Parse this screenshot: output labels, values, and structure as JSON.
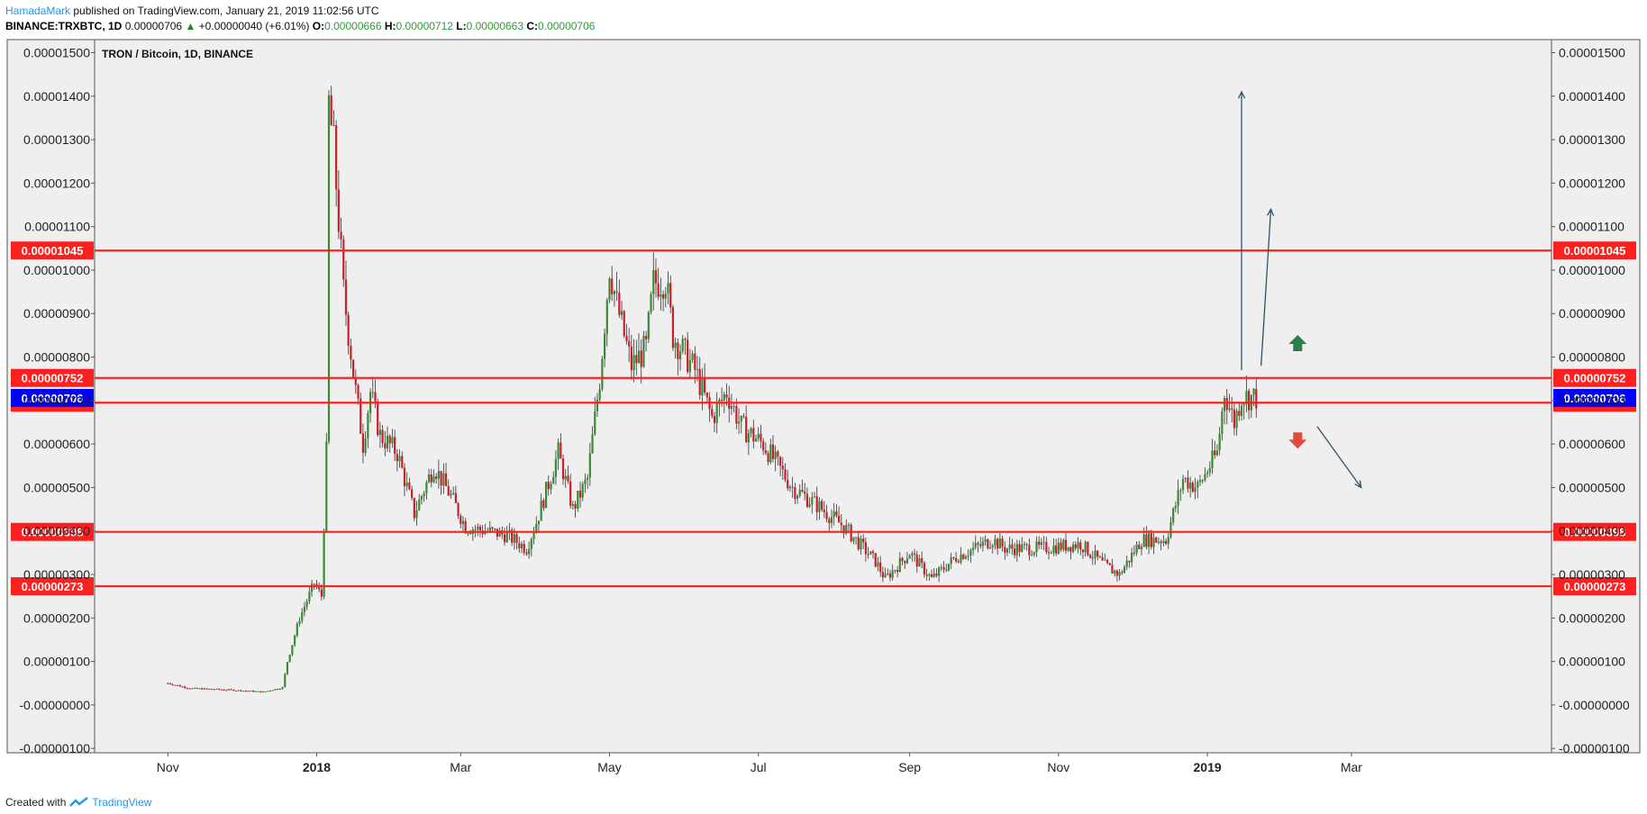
{
  "header": {
    "user": "HamadaMark",
    "published": "published on TradingView.com, January 21, 2019 11:02:56 UTC",
    "symbol": "BINANCE:TRXBTC, 1D",
    "last": "0.00000706",
    "change": "+0.00000040 (+6.01%)",
    "o_label": "O:",
    "o": "0.00000666",
    "h_label": "H:",
    "h": "0.00000712",
    "l_label": "L:",
    "l": "0.00000663",
    "c_label": "C:",
    "c": "0.00000706"
  },
  "footer": {
    "created": "Created with",
    "brand": "TradingView"
  },
  "colors": {
    "up": "#3a8a35",
    "down": "#c8202a",
    "level": "#ff1f1f",
    "current": "#0000ff",
    "plot_bg": "#efefef",
    "arrow": "#2d5566",
    "green_arrow": "#2e7d4f",
    "red_arrow": "#e04b3c"
  },
  "chart_data": {
    "type": "candlestick",
    "title": "TRON / Bitcoin, 1D, BINANCE",
    "ylim": [
      -1.1e-06,
      1.53e-05
    ],
    "y_ticks": [
      "0.00001500",
      "0.00001400",
      "0.00001300",
      "0.00001200",
      "0.00001100",
      "0.00001000",
      "0.00000900",
      "0.00000800",
      "0.00000700",
      "0.00000600",
      "0.00000500",
      "0.00000400",
      "0.00000300",
      "0.00000200",
      "0.00000100",
      "-0.00000000",
      "-0.00000100"
    ],
    "y_tick_values": [
      1.5e-05,
      1.4e-05,
      1.3e-05,
      1.2e-05,
      1.1e-05,
      1e-05,
      9e-06,
      8e-06,
      7e-06,
      6e-06,
      5e-06,
      4e-06,
      3e-06,
      2e-06,
      1e-06,
      0,
      -1e-06
    ],
    "x_labels": [
      {
        "label": "Nov",
        "date": "2017-11-01",
        "bold": false
      },
      {
        "label": "2018",
        "date": "2018-01-01",
        "bold": true
      },
      {
        "label": "Mar",
        "date": "2018-03-01",
        "bold": false
      },
      {
        "label": "May",
        "date": "2018-05-01",
        "bold": false
      },
      {
        "label": "Jul",
        "date": "2018-07-01",
        "bold": false
      },
      {
        "label": "Sep",
        "date": "2018-09-01",
        "bold": false
      },
      {
        "label": "Nov",
        "date": "2018-11-01",
        "bold": false
      },
      {
        "label": "2019",
        "date": "2019-01-01",
        "bold": true
      },
      {
        "label": "Mar",
        "date": "2019-03-01",
        "bold": false
      }
    ],
    "x_range": [
      "2017-10-02",
      "2019-05-22"
    ],
    "levels": [
      {
        "value": 1.045e-05,
        "label": "0.00001045"
      },
      {
        "value": 7.52e-06,
        "label": "0.00000752"
      },
      {
        "value": 6.95e-06,
        "label": "0.00000695"
      },
      {
        "value": 3.98e-06,
        "label": "0.00000398"
      },
      {
        "value": 2.73e-06,
        "label": "0.00000273"
      }
    ],
    "current": {
      "value": 7.06e-06,
      "label": "0.00000706"
    },
    "price_path": [
      [
        "2017-11-01",
        5e-07
      ],
      [
        "2017-11-10",
        3.8e-07
      ],
      [
        "2017-11-25",
        3.5e-07
      ],
      [
        "2017-12-10",
        3e-07
      ],
      [
        "2017-12-18",
        4e-07
      ],
      [
        "2017-12-20",
        1e-06
      ],
      [
        "2017-12-25",
        2e-06
      ],
      [
        "2017-12-31",
        2.8e-06
      ],
      [
        "2018-01-03",
        2.5e-06
      ],
      [
        "2018-01-05",
        5.8e-06
      ],
      [
        "2018-01-06",
        1.38e-05
      ],
      [
        "2018-01-08",
        1.28e-05
      ],
      [
        "2018-01-12",
        9.5e-06
      ],
      [
        "2018-01-17",
        7.2e-06
      ],
      [
        "2018-01-20",
        6e-06
      ],
      [
        "2018-01-23",
        7.2e-06
      ],
      [
        "2018-01-27",
        6.2e-06
      ],
      [
        "2018-02-03",
        5.8e-06
      ],
      [
        "2018-02-10",
        4.4e-06
      ],
      [
        "2018-02-18",
        5.5e-06
      ],
      [
        "2018-02-25",
        4.8e-06
      ],
      [
        "2018-03-03",
        4.1e-06
      ],
      [
        "2018-03-20",
        3.9e-06
      ],
      [
        "2018-03-28",
        3.6e-06
      ],
      [
        "2018-04-01",
        4.2e-06
      ],
      [
        "2018-04-10",
        5.8e-06
      ],
      [
        "2018-04-16",
        4.5e-06
      ],
      [
        "2018-04-22",
        5.2e-06
      ],
      [
        "2018-04-27",
        7.5e-06
      ],
      [
        "2018-05-01",
        1.01e-05
      ],
      [
        "2018-05-04",
        9.2e-06
      ],
      [
        "2018-05-10",
        7.8e-06
      ],
      [
        "2018-05-16",
        8.2e-06
      ],
      [
        "2018-05-19",
        9.7e-06
      ],
      [
        "2018-05-24",
        9.8e-06
      ],
      [
        "2018-05-27",
        8.5e-06
      ],
      [
        "2018-06-05",
        7.7e-06
      ],
      [
        "2018-06-12",
        6.6e-06
      ],
      [
        "2018-06-18",
        7.2e-06
      ],
      [
        "2018-06-24",
        6.4e-06
      ],
      [
        "2018-07-03",
        6e-06
      ],
      [
        "2018-07-15",
        5e-06
      ],
      [
        "2018-07-25",
        4.6e-06
      ],
      [
        "2018-08-05",
        4.1e-06
      ],
      [
        "2018-08-18",
        3.3e-06
      ],
      [
        "2018-08-22",
        2.9e-06
      ],
      [
        "2018-09-01",
        3.5e-06
      ],
      [
        "2018-09-10",
        2.9e-06
      ],
      [
        "2018-09-20",
        3.4e-06
      ],
      [
        "2018-10-05",
        3.8e-06
      ],
      [
        "2018-10-10",
        3.6e-06
      ],
      [
        "2018-10-25",
        3.6e-06
      ],
      [
        "2018-11-10",
        3.7e-06
      ],
      [
        "2018-11-20",
        3.2e-06
      ],
      [
        "2018-11-26",
        3e-06
      ],
      [
        "2018-12-05",
        3.8e-06
      ],
      [
        "2018-12-15",
        3.8e-06
      ],
      [
        "2018-12-22",
        5.2e-06
      ],
      [
        "2018-12-28",
        5e-06
      ],
      [
        "2019-01-05",
        5.8e-06
      ],
      [
        "2019-01-08",
        7.2e-06
      ],
      [
        "2019-01-12",
        6.5e-06
      ],
      [
        "2019-01-15",
        7.1e-06
      ],
      [
        "2019-01-21",
        7.06e-06
      ]
    ],
    "projections": [
      {
        "from": [
          "2019-01-15",
          7.7e-06
        ],
        "to": [
          "2019-01-15",
          1.41e-05
        ]
      },
      {
        "from": [
          "2019-01-23",
          7.8e-06
        ],
        "to": [
          "2019-01-27",
          1.14e-05
        ]
      },
      {
        "from": [
          "2019-02-15",
          6.4e-06
        ],
        "to": [
          "2019-03-05",
          5e-06
        ]
      }
    ],
    "signals": [
      {
        "type": "up",
        "date": "2019-02-07",
        "value": 8.3e-06
      },
      {
        "type": "down",
        "date": "2019-02-07",
        "value": 6.1e-06
      }
    ]
  }
}
